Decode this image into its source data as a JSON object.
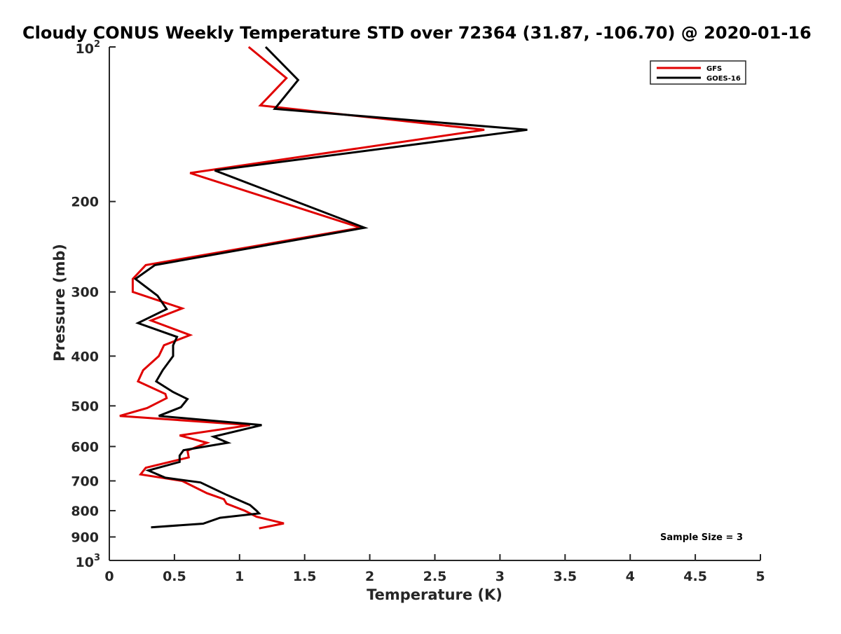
{
  "chart_data": {
    "type": "line",
    "title": "Cloudy CONUS Weekly Temperature STD over 72364 (31.87, -106.70) @ 2020-01-16",
    "xlabel": "Temperature (K)",
    "ylabel": "Pressure (mb)",
    "xlim": [
      0,
      5
    ],
    "ylim": [
      100,
      1000
    ],
    "y_scale": "log",
    "y_reversed": true,
    "grid": false,
    "legend_position": "top-right",
    "x_ticks": [
      {
        "value": 0,
        "label": "0"
      },
      {
        "value": 0.5,
        "label": "0.5"
      },
      {
        "value": 1,
        "label": "1"
      },
      {
        "value": 1.5,
        "label": "1.5"
      },
      {
        "value": 2,
        "label": "2"
      },
      {
        "value": 2.5,
        "label": "2.5"
      },
      {
        "value": 3,
        "label": "3"
      },
      {
        "value": 3.5,
        "label": "3.5"
      },
      {
        "value": 4,
        "label": "4"
      },
      {
        "value": 4.5,
        "label": "4.5"
      },
      {
        "value": 5,
        "label": "5"
      }
    ],
    "y_ticks": [
      {
        "value": 200,
        "label": "200"
      },
      {
        "value": 300,
        "label": "300"
      },
      {
        "value": 400,
        "label": "400"
      },
      {
        "value": 500,
        "label": "500"
      },
      {
        "value": 600,
        "label": "600"
      },
      {
        "value": 700,
        "label": "700"
      },
      {
        "value": 800,
        "label": "800"
      },
      {
        "value": 900,
        "label": "900"
      }
    ],
    "y_power_ticks": [
      {
        "value": 100,
        "base": "10",
        "exp": "2"
      },
      {
        "value": 1000,
        "base": "10",
        "exp": "3"
      }
    ],
    "series": [
      {
        "name": "GFS",
        "color": "#e00000",
        "points": [
          [
            1.07,
            100
          ],
          [
            1.36,
            115
          ],
          [
            1.16,
            130
          ],
          [
            2.88,
            145
          ],
          [
            0.62,
            176
          ],
          [
            1.93,
            225
          ],
          [
            0.28,
            266
          ],
          [
            0.18,
            283
          ],
          [
            0.18,
            300
          ],
          [
            0.56,
            323
          ],
          [
            0.32,
            341
          ],
          [
            0.62,
            364
          ],
          [
            0.42,
            381
          ],
          [
            0.38,
            400
          ],
          [
            0.26,
            426
          ],
          [
            0.22,
            448
          ],
          [
            0.43,
            474
          ],
          [
            0.44,
            483
          ],
          [
            0.29,
            505
          ],
          [
            0.08,
            523
          ],
          [
            1.08,
            545
          ],
          [
            0.54,
            571
          ],
          [
            0.75,
            590
          ],
          [
            0.6,
            611
          ],
          [
            0.61,
            630
          ],
          [
            0.28,
            660
          ],
          [
            0.24,
            680
          ],
          [
            0.56,
            700
          ],
          [
            0.75,
            740
          ],
          [
            0.88,
            760
          ],
          [
            0.9,
            775
          ],
          [
            1.04,
            800
          ],
          [
            1.13,
            822
          ],
          [
            1.34,
            847
          ],
          [
            1.15,
            866
          ]
        ]
      },
      {
        "name": "GOES-16",
        "color": "#000000",
        "points": [
          [
            1.2,
            100
          ],
          [
            1.45,
            116
          ],
          [
            1.27,
            132
          ],
          [
            3.21,
            145
          ],
          [
            0.81,
            174
          ],
          [
            1.96,
            225
          ],
          [
            0.35,
            266
          ],
          [
            0.2,
            283
          ],
          [
            0.37,
            305
          ],
          [
            0.44,
            324
          ],
          [
            0.22,
            345
          ],
          [
            0.52,
            367
          ],
          [
            0.49,
            381
          ],
          [
            0.49,
            400
          ],
          [
            0.41,
            426
          ],
          [
            0.36,
            448
          ],
          [
            0.49,
            470
          ],
          [
            0.6,
            485
          ],
          [
            0.55,
            503
          ],
          [
            0.38,
            523
          ],
          [
            1.17,
            545
          ],
          [
            0.8,
            574
          ],
          [
            0.91,
            590
          ],
          [
            0.57,
            610
          ],
          [
            0.54,
            625
          ],
          [
            0.54,
            643
          ],
          [
            0.3,
            668
          ],
          [
            0.43,
            690
          ],
          [
            0.7,
            705
          ],
          [
            0.9,
            745
          ],
          [
            1.08,
            780
          ],
          [
            1.13,
            800
          ],
          [
            1.15,
            810
          ],
          [
            0.85,
            826
          ],
          [
            0.72,
            848
          ],
          [
            0.32,
            862
          ]
        ]
      }
    ],
    "annotation": "Sample Size = 3"
  }
}
